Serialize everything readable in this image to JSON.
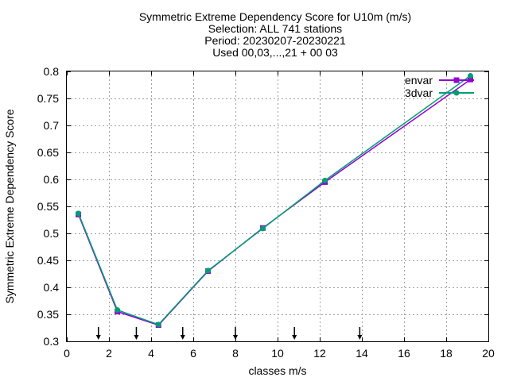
{
  "chart_data": {
    "type": "line",
    "title_lines": [
      "Symmetric Extreme Dependency Score  for U10m (m/s)",
      "Selection: ALL    741 stations",
      "Period: 20230207-20230221",
      "Used 00,03,...,21 + 00 03"
    ],
    "xlabel": "classes m/s",
    "ylabel": "Symmetric Extreme Dependency Score",
    "xlim": [
      0,
      20
    ],
    "ylim": [
      0.3,
      0.8
    ],
    "x_ticks": [
      0,
      2,
      4,
      6,
      8,
      10,
      12,
      14,
      16,
      18,
      20
    ],
    "y_ticks": [
      0.3,
      0.35,
      0.4,
      0.45,
      0.5,
      0.55,
      0.6,
      0.65,
      0.7,
      0.75,
      0.8
    ],
    "x_tick_labels": [
      "0",
      "2",
      "4",
      "6",
      "8",
      "10",
      "12",
      "14",
      "16",
      "18",
      "20"
    ],
    "y_tick_labels": [
      "0.3",
      "0.35",
      "0.4",
      "0.45",
      "0.5",
      "0.55",
      "0.6",
      "0.65",
      "0.7",
      "0.75",
      "0.8"
    ],
    "grid": true,
    "legend_position": "top-right",
    "series": [
      {
        "name": "envar",
        "color": "#9400d3",
        "marker": "square",
        "x": [
          0.55,
          2.4,
          4.35,
          6.7,
          9.3,
          12.25,
          19.15
        ],
        "y": [
          0.535,
          0.355,
          0.33,
          0.43,
          0.51,
          0.595,
          0.785
        ]
      },
      {
        "name": "3dvar",
        "color": "#009e73",
        "marker": "circle",
        "x": [
          0.55,
          2.4,
          4.35,
          6.7,
          9.3,
          12.25,
          19.15
        ],
        "y": [
          0.537,
          0.358,
          0.331,
          0.431,
          0.509,
          0.598,
          0.792
        ]
      }
    ],
    "class_boundary_arrows": [
      1.5,
      3.3,
      5.5,
      8.0,
      10.8,
      13.9
    ]
  }
}
